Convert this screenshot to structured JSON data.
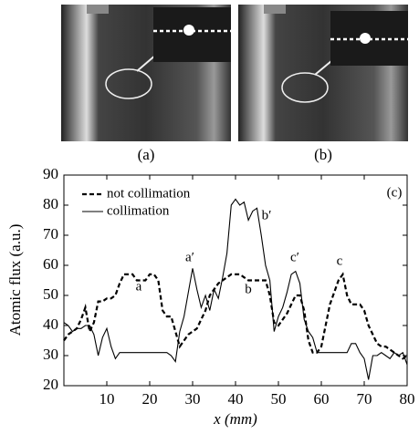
{
  "panel_labels": [
    "(a)",
    "(b)"
  ],
  "chart_data": {
    "type": "line",
    "x_label": "x (mm)",
    "y_label": "Atomic flux (a.u.)",
    "annotations": [
      "(c)",
      "a",
      "a′",
      "b",
      "b′",
      "c",
      "c′"
    ],
    "xlim": [
      0,
      80
    ],
    "ylim": [
      20,
      90
    ],
    "xticks": [
      10,
      20,
      30,
      40,
      50,
      60,
      70,
      80
    ],
    "yticks": [
      20,
      30,
      40,
      50,
      60,
      70,
      80,
      90
    ],
    "x": [
      0,
      1,
      2,
      3,
      4,
      5,
      6,
      7,
      8,
      9,
      10,
      11,
      12,
      13,
      14,
      15,
      16,
      17,
      18,
      19,
      20,
      21,
      22,
      23,
      24,
      25,
      26,
      27,
      28,
      29,
      30,
      31,
      32,
      33,
      34,
      35,
      36,
      37,
      38,
      39,
      40,
      41,
      42,
      43,
      44,
      45,
      46,
      47,
      48,
      49,
      50,
      51,
      52,
      53,
      54,
      55,
      56,
      57,
      58,
      59,
      60,
      61,
      62,
      63,
      64,
      65,
      66,
      67,
      68,
      69,
      70,
      71,
      72,
      73,
      74,
      75,
      76,
      77,
      78,
      79,
      80
    ],
    "series": [
      {
        "name": "not collimation",
        "color": "#000000",
        "dash": true,
        "values": [
          35,
          37,
          38,
          39,
          42,
          46,
          38,
          41,
          48,
          48,
          49,
          49,
          50,
          54,
          57,
          57,
          57,
          55,
          55,
          55,
          57,
          57,
          55,
          45,
          43,
          43,
          38,
          33,
          35,
          37,
          38,
          39,
          42,
          45,
          50,
          52,
          54,
          55,
          56,
          57,
          57,
          57,
          56,
          55,
          55,
          55,
          55,
          55,
          50,
          41,
          40,
          42,
          44,
          47,
          50,
          50,
          45,
          35,
          31,
          31,
          33,
          40,
          47,
          51,
          55,
          57,
          50,
          47,
          47,
          47,
          45,
          40,
          37,
          34,
          33,
          33,
          32,
          31,
          30,
          29,
          30
        ]
      },
      {
        "name": "collimation",
        "color": "#000000",
        "dash": false,
        "values": [
          41,
          40,
          38,
          39,
          39,
          40,
          40,
          37,
          30,
          36,
          39,
          33,
          29,
          31,
          31,
          31,
          31,
          31,
          31,
          31,
          31,
          31,
          31,
          31,
          31,
          30,
          28,
          38,
          43,
          51,
          59,
          52,
          46,
          50,
          45,
          52,
          49,
          56,
          64,
          80,
          82,
          80,
          81,
          75,
          78,
          79,
          70,
          60,
          55,
          38,
          43,
          46,
          51,
          57,
          58,
          54,
          42,
          38,
          36,
          31,
          31,
          31,
          31,
          31,
          31,
          31,
          31,
          34,
          34,
          31,
          29,
          22,
          30,
          30,
          31,
          30,
          29,
          31,
          30,
          31,
          27
        ]
      }
    ]
  }
}
